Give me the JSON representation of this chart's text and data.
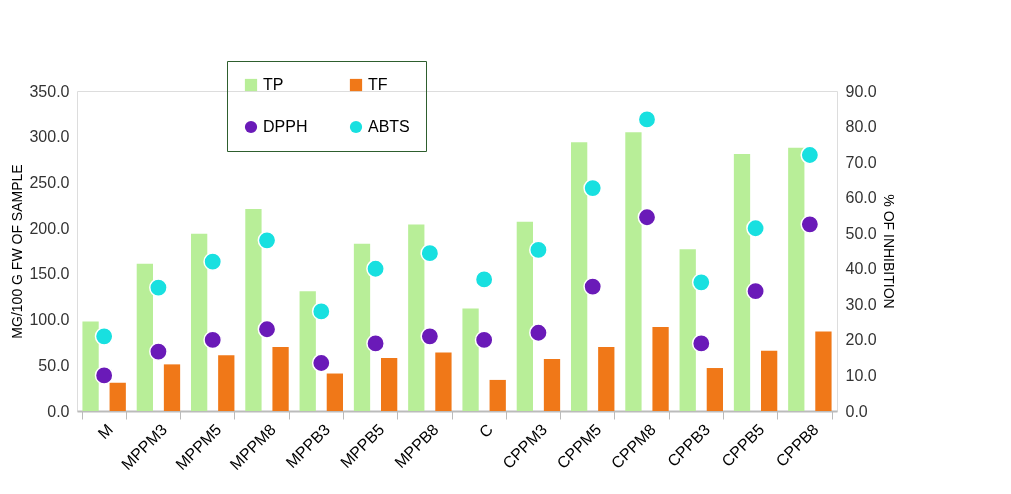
{
  "chart_data": {
    "type": "bar",
    "categories": [
      "M",
      "MPPM3",
      "MPPM5",
      "MPPM8",
      "MPPB3",
      "MPPB5",
      "MPPB8",
      "C",
      "CPPM3",
      "CPPM5",
      "CPPM8",
      "CPPB3",
      "CPPB5",
      "CPPB8"
    ],
    "ylabel": "MG/100 G FW OF SAMPLE",
    "y2label": "% OF INHIBITION",
    "ylim": [
      0,
      350
    ],
    "yticks": [
      {
        "value": 0,
        "label": "0.0"
      },
      {
        "value": 50,
        "label": "50.0"
      },
      {
        "value": 100,
        "label": "100.0"
      },
      {
        "value": 150,
        "label": "150.0"
      },
      {
        "value": 200,
        "label": "200.0"
      },
      {
        "value": 250,
        "label": "250.0"
      },
      {
        "value": 300,
        "label": "300.0"
      },
      {
        "value": 350,
        "label": "350.0"
      }
    ],
    "y2lim": [
      0,
      90
    ],
    "y2ticks": [
      {
        "value": 0,
        "label": "0.0"
      },
      {
        "value": 10,
        "label": "10.0"
      },
      {
        "value": 20,
        "label": "20.0"
      },
      {
        "value": 30,
        "label": "30.0"
      },
      {
        "value": 40,
        "label": "40.0"
      },
      {
        "value": 50,
        "label": "50.0"
      },
      {
        "value": 60,
        "label": "60.0"
      },
      {
        "value": 70,
        "label": "70.0"
      },
      {
        "value": 80,
        "label": "80.0"
      },
      {
        "value": 90,
        "label": "90.0"
      }
    ],
    "grid": false,
    "legend": "top left",
    "marker": "circle",
    "series": [
      {
        "name": "TP",
        "color": "#b8ee98",
        "values": [
          98,
          161,
          194,
          221,
          131,
          183,
          204,
          112,
          207,
          294,
          305,
          177,
          281,
          288
        ]
      },
      {
        "name": "TF",
        "color": "#f07818",
        "values": [
          31,
          51,
          61,
          70,
          41,
          58,
          64,
          34,
          57,
          70,
          92,
          47,
          66,
          87
        ]
      },
      {
        "name": "DPPH",
        "type": "scatter",
        "axis": "y2",
        "color": "#6a1ab8",
        "values": [
          10,
          16.7,
          20,
          23,
          13.5,
          19,
          21,
          20,
          22,
          35,
          54.5,
          19,
          33.7,
          52.5
        ]
      },
      {
        "name": "ABTS",
        "type": "scatter",
        "axis": "y2",
        "color": "#18e0e0",
        "values": [
          21,
          34.7,
          42,
          48,
          28,
          40,
          44.4,
          37,
          45.3,
          62.7,
          82,
          36.2,
          51.4,
          72
        ]
      }
    ]
  }
}
